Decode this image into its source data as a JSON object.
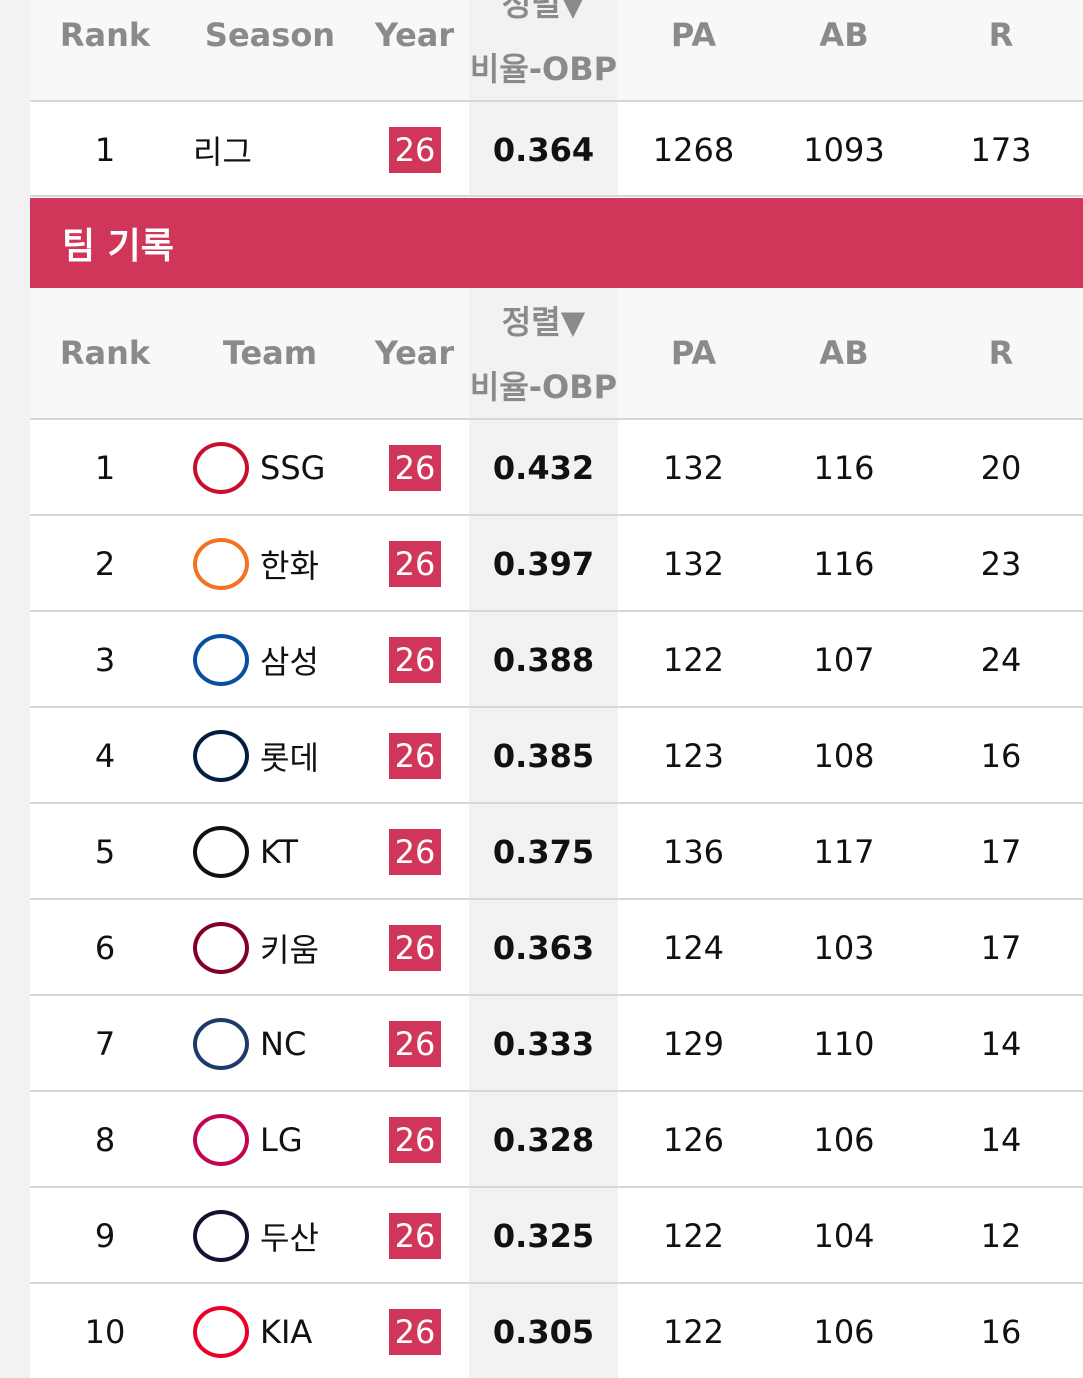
{
  "top_table": {
    "headers": [
      "Rank",
      "Season",
      "Year",
      {
        "sort": "정렬▼",
        "label": "비율-OBP"
      },
      "PA",
      "AB",
      "R"
    ],
    "rows": [
      [
        "1",
        "리그",
        "26",
        "0.364",
        "1268",
        "1093",
        "173"
      ]
    ]
  },
  "section_title": "팀 기록",
  "team_table": {
    "headers": [
      "Rank",
      "Team",
      "Year",
      {
        "sort": "정렬▼",
        "label": "비율-OBP"
      },
      "PA",
      "AB",
      "R"
    ],
    "rows": [
      [
        "1",
        "SSG",
        "26",
        "0.432",
        "132",
        "116",
        "20"
      ],
      [
        "2",
        "한화",
        "26",
        "0.397",
        "132",
        "116",
        "23"
      ],
      [
        "3",
        "삼성",
        "26",
        "0.388",
        "122",
        "107",
        "24"
      ],
      [
        "4",
        "롯데",
        "26",
        "0.385",
        "123",
        "108",
        "16"
      ],
      [
        "5",
        "KT",
        "26",
        "0.375",
        "136",
        "117",
        "17"
      ],
      [
        "6",
        "키움",
        "26",
        "0.363",
        "124",
        "103",
        "17"
      ],
      [
        "7",
        "NC",
        "26",
        "0.333",
        "129",
        "110",
        "14"
      ],
      [
        "8",
        "LG",
        "26",
        "0.328",
        "126",
        "106",
        "14"
      ],
      [
        "9",
        "두산",
        "26",
        "0.325",
        "122",
        "104",
        "12"
      ],
      [
        "10",
        "KIA",
        "26",
        "0.305",
        "122",
        "106",
        "16"
      ]
    ]
  }
}
